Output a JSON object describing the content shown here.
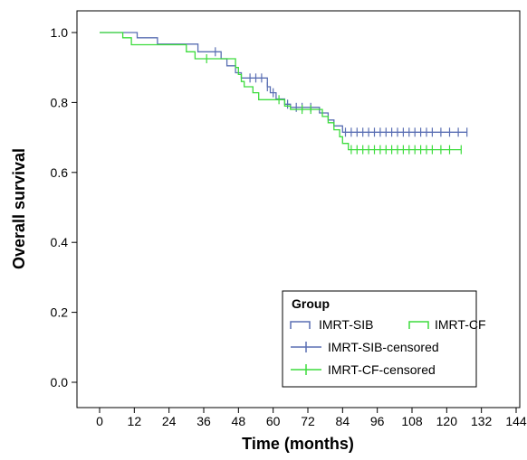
{
  "chart_data": {
    "type": "line",
    "subtype": "kaplan-meier",
    "xlabel": "Time (months)",
    "ylabel": "Overall survival",
    "xlim": [
      0,
      144
    ],
    "ylim": [
      0.0,
      1.0
    ],
    "x_ticks": [
      0,
      12,
      24,
      36,
      48,
      60,
      72,
      84,
      96,
      108,
      120,
      132,
      144
    ],
    "y_ticks": [
      0.0,
      0.2,
      0.4,
      0.6,
      0.8,
      1.0
    ],
    "y_tick_labels": [
      "0.0",
      "0.2",
      "0.4",
      "0.6",
      "0.8",
      "1.0"
    ],
    "grid": false,
    "legend": {
      "title": "Group",
      "placement": "bottom-right",
      "entries": [
        {
          "label": "IMRT-SIB",
          "style": "step",
          "color": "#5a6fb3"
        },
        {
          "label": "IMRT-CF",
          "style": "step",
          "color": "#3ddc3d"
        },
        {
          "label": "IMRT-SIB-censored",
          "style": "censor",
          "color": "#5a6fb3"
        },
        {
          "label": "IMRT-CF-censored",
          "style": "censor",
          "color": "#3ddc3d"
        }
      ]
    },
    "series": [
      {
        "name": "IMRT-SIB",
        "color": "#5a6fb3",
        "steps": [
          [
            0,
            1.0
          ],
          [
            13,
            0.985
          ],
          [
            20,
            0.967
          ],
          [
            34,
            0.945
          ],
          [
            42,
            0.925
          ],
          [
            44,
            0.905
          ],
          [
            47,
            0.885
          ],
          [
            49,
            0.87
          ],
          [
            58,
            0.845
          ],
          [
            59,
            0.828
          ],
          [
            61,
            0.81
          ],
          [
            64,
            0.795
          ],
          [
            66,
            0.786
          ],
          [
            76,
            0.77
          ],
          [
            79,
            0.75
          ],
          [
            81,
            0.733
          ],
          [
            84,
            0.715
          ],
          [
            127,
            0.715
          ]
        ],
        "censored": [
          40,
          52,
          54,
          56,
          58,
          60,
          65,
          68,
          70,
          73,
          85,
          87,
          89,
          91,
          93,
          95,
          97,
          99,
          101,
          103,
          105,
          107,
          109,
          111,
          113,
          115,
          118,
          121,
          124,
          127
        ]
      },
      {
        "name": "IMRT-CF",
        "color": "#3ddc3d",
        "steps": [
          [
            0,
            1.0
          ],
          [
            8,
            0.985
          ],
          [
            11,
            0.965
          ],
          [
            30,
            0.945
          ],
          [
            33,
            0.925
          ],
          [
            47,
            0.9
          ],
          [
            48,
            0.88
          ],
          [
            49,
            0.86
          ],
          [
            50,
            0.845
          ],
          [
            53,
            0.828
          ],
          [
            55,
            0.808
          ],
          [
            64,
            0.79
          ],
          [
            66,
            0.78
          ],
          [
            77,
            0.76
          ],
          [
            79,
            0.742
          ],
          [
            81,
            0.722
          ],
          [
            83,
            0.702
          ],
          [
            84,
            0.683
          ],
          [
            86,
            0.665
          ],
          [
            125,
            0.665
          ]
        ],
        "censored": [
          37,
          62,
          70,
          73,
          87,
          89,
          91,
          93,
          95,
          97,
          99,
          101,
          103,
          105,
          107,
          109,
          111,
          113,
          115,
          118,
          121,
          125
        ]
      }
    ]
  }
}
